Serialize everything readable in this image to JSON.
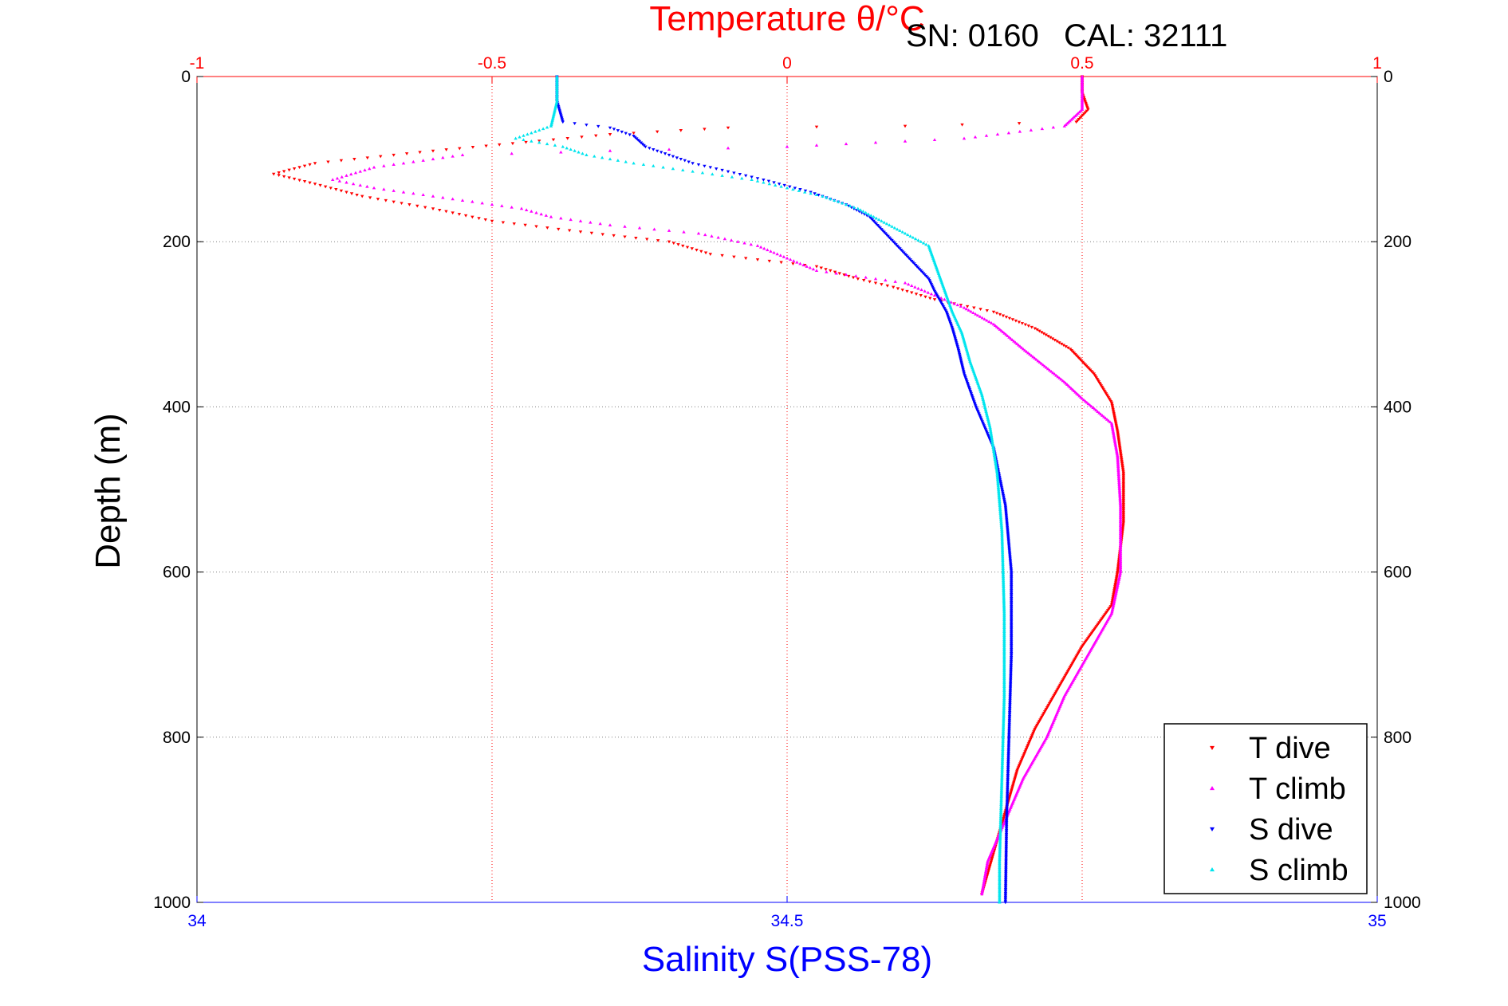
{
  "header": {
    "serial_text": "SN: 0160",
    "cal_text": "CAL: 32111"
  },
  "colors": {
    "t_dive": "#ff0000",
    "t_climb": "#ff00ff",
    "s_dive": "#0000ff",
    "s_climb": "#00e5ee",
    "temperature_axis": "#ff0000",
    "salinity_axis": "#0000ff",
    "depth_axis": "#000000",
    "grid": "#808080"
  },
  "chart_data": {
    "type": "scatter",
    "top_axis": {
      "label": "Temperature θ/°C",
      "range": [
        -1,
        1
      ],
      "ticks": [
        -1,
        -0.5,
        0,
        0.5,
        1
      ],
      "tick_labels": [
        "-1",
        "-0.5",
        "0",
        "0.5",
        "1"
      ]
    },
    "bottom_axis": {
      "label": "Salinity S(PSS-78)",
      "range": [
        34,
        35
      ],
      "ticks": [
        34,
        34.5,
        35
      ],
      "tick_labels": [
        "34",
        "34.5",
        "35"
      ]
    },
    "y_axis": {
      "label": "Depth (m)",
      "range": [
        0,
        1000
      ],
      "inverted": true,
      "ticks": [
        0,
        200,
        400,
        600,
        800,
        1000
      ],
      "tick_labels": [
        "0",
        "200",
        "400",
        "600",
        "800",
        "1000"
      ],
      "labels_both_sides": true
    },
    "grid": "vertical temperature grid (red dotted) and horizontal depth grid (black dotted)",
    "legend": {
      "placement": "bottom-right",
      "entries": [
        "T dive",
        "T climb",
        "S dive",
        "S climb"
      ]
    },
    "series": [
      {
        "name": "T dive",
        "axis": "temperature",
        "marker": "triangle-down",
        "points": [
          [
            0.5,
            0
          ],
          [
            0.5,
            20
          ],
          [
            0.51,
            40
          ],
          [
            0.49,
            55
          ],
          [
            0.2,
            60
          ],
          [
            -0.1,
            62
          ],
          [
            -0.3,
            70
          ],
          [
            -0.42,
            78
          ],
          [
            -0.6,
            90
          ],
          [
            -0.8,
            105
          ],
          [
            -0.87,
            118
          ],
          [
            -0.8,
            130
          ],
          [
            -0.72,
            145
          ],
          [
            -0.6,
            160
          ],
          [
            -0.5,
            175
          ],
          [
            -0.35,
            188
          ],
          [
            -0.2,
            200
          ],
          [
            -0.13,
            215
          ],
          [
            0.05,
            230
          ],
          [
            0.12,
            245
          ],
          [
            0.18,
            255
          ],
          [
            0.25,
            270
          ],
          [
            0.35,
            285
          ],
          [
            0.42,
            305
          ],
          [
            0.48,
            330
          ],
          [
            0.52,
            360
          ],
          [
            0.55,
            395
          ],
          [
            0.56,
            430
          ],
          [
            0.57,
            480
          ],
          [
            0.57,
            540
          ],
          [
            0.56,
            600
          ],
          [
            0.55,
            640
          ],
          [
            0.5,
            690
          ],
          [
            0.46,
            740
          ],
          [
            0.42,
            790
          ],
          [
            0.39,
            840
          ],
          [
            0.37,
            890
          ],
          [
            0.35,
            940
          ],
          [
            0.33,
            990
          ]
        ]
      },
      {
        "name": "T climb",
        "axis": "temperature",
        "marker": "triangle-up",
        "points": [
          [
            0.5,
            0
          ],
          [
            0.5,
            20
          ],
          [
            0.5,
            40
          ],
          [
            0.47,
            60
          ],
          [
            0.3,
            75
          ],
          [
            0.0,
            85
          ],
          [
            -0.3,
            90
          ],
          [
            -0.55,
            95
          ],
          [
            -0.7,
            110
          ],
          [
            -0.77,
            125
          ],
          [
            -0.7,
            135
          ],
          [
            -0.55,
            150
          ],
          [
            -0.45,
            160
          ],
          [
            -0.4,
            170
          ],
          [
            -0.3,
            180
          ],
          [
            -0.15,
            190
          ],
          [
            -0.05,
            205
          ],
          [
            0.0,
            220
          ],
          [
            0.05,
            235
          ],
          [
            0.2,
            250
          ],
          [
            0.25,
            265
          ],
          [
            0.3,
            280
          ],
          [
            0.35,
            300
          ],
          [
            0.4,
            330
          ],
          [
            0.47,
            370
          ],
          [
            0.5,
            390
          ],
          [
            0.55,
            420
          ],
          [
            0.56,
            460
          ],
          [
            0.565,
            520
          ],
          [
            0.565,
            600
          ],
          [
            0.55,
            650
          ],
          [
            0.51,
            700
          ],
          [
            0.47,
            750
          ],
          [
            0.44,
            800
          ],
          [
            0.4,
            850
          ],
          [
            0.37,
            900
          ],
          [
            0.34,
            950
          ],
          [
            0.33,
            990
          ]
        ]
      },
      {
        "name": "S dive",
        "axis": "salinity",
        "marker": "triangle-down",
        "points": [
          [
            34.305,
            0
          ],
          [
            34.305,
            30
          ],
          [
            34.31,
            55
          ],
          [
            34.35,
            62
          ],
          [
            34.37,
            72
          ],
          [
            34.38,
            85
          ],
          [
            34.4,
            95
          ],
          [
            34.42,
            105
          ],
          [
            34.45,
            115
          ],
          [
            34.48,
            125
          ],
          [
            34.52,
            140
          ],
          [
            34.55,
            155
          ],
          [
            34.57,
            170
          ],
          [
            34.58,
            185
          ],
          [
            34.59,
            200
          ],
          [
            34.6,
            215
          ],
          [
            34.61,
            230
          ],
          [
            34.62,
            245
          ],
          [
            34.625,
            260
          ],
          [
            34.635,
            285
          ],
          [
            34.64,
            305
          ],
          [
            34.645,
            330
          ],
          [
            34.65,
            360
          ],
          [
            34.66,
            400
          ],
          [
            34.675,
            450
          ],
          [
            34.685,
            520
          ],
          [
            34.69,
            600
          ],
          [
            34.69,
            700
          ],
          [
            34.688,
            800
          ],
          [
            34.686,
            900
          ],
          [
            34.685,
            1000
          ]
        ]
      },
      {
        "name": "S climb",
        "axis": "salinity",
        "marker": "triangle-up",
        "points": [
          [
            34.305,
            0
          ],
          [
            34.305,
            30
          ],
          [
            34.3,
            60
          ],
          [
            34.27,
            75
          ],
          [
            34.31,
            85
          ],
          [
            34.33,
            95
          ],
          [
            34.37,
            105
          ],
          [
            34.42,
            115
          ],
          [
            34.47,
            125
          ],
          [
            34.5,
            135
          ],
          [
            34.53,
            145
          ],
          [
            34.56,
            160
          ],
          [
            34.58,
            175
          ],
          [
            34.6,
            190
          ],
          [
            34.62,
            205
          ],
          [
            34.625,
            225
          ],
          [
            34.63,
            245
          ],
          [
            34.635,
            265
          ],
          [
            34.64,
            285
          ],
          [
            34.648,
            310
          ],
          [
            34.655,
            345
          ],
          [
            34.665,
            385
          ],
          [
            34.672,
            425
          ],
          [
            34.678,
            480
          ],
          [
            34.682,
            550
          ],
          [
            34.684,
            650
          ],
          [
            34.684,
            750
          ],
          [
            34.682,
            850
          ],
          [
            34.68,
            950
          ],
          [
            34.68,
            1000
          ]
        ]
      }
    ]
  }
}
